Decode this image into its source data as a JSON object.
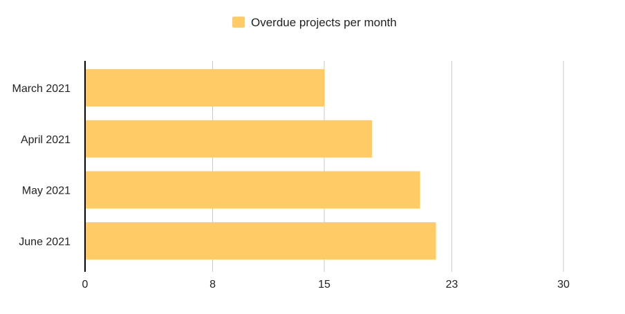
{
  "chart_data": {
    "type": "bar",
    "orientation": "horizontal",
    "categories": [
      "March 2021",
      "April 2021",
      "May 2021",
      "June 2021"
    ],
    "series": [
      {
        "name": "Overdue projects per month",
        "values": [
          15,
          18,
          21,
          22
        ],
        "color": "#FECB66"
      }
    ],
    "xaxis": {
      "ticks": [
        "0",
        "8",
        "15",
        "23",
        "30"
      ],
      "range": [
        0,
        30
      ]
    },
    "grid": true,
    "legend_position": "top-center"
  }
}
